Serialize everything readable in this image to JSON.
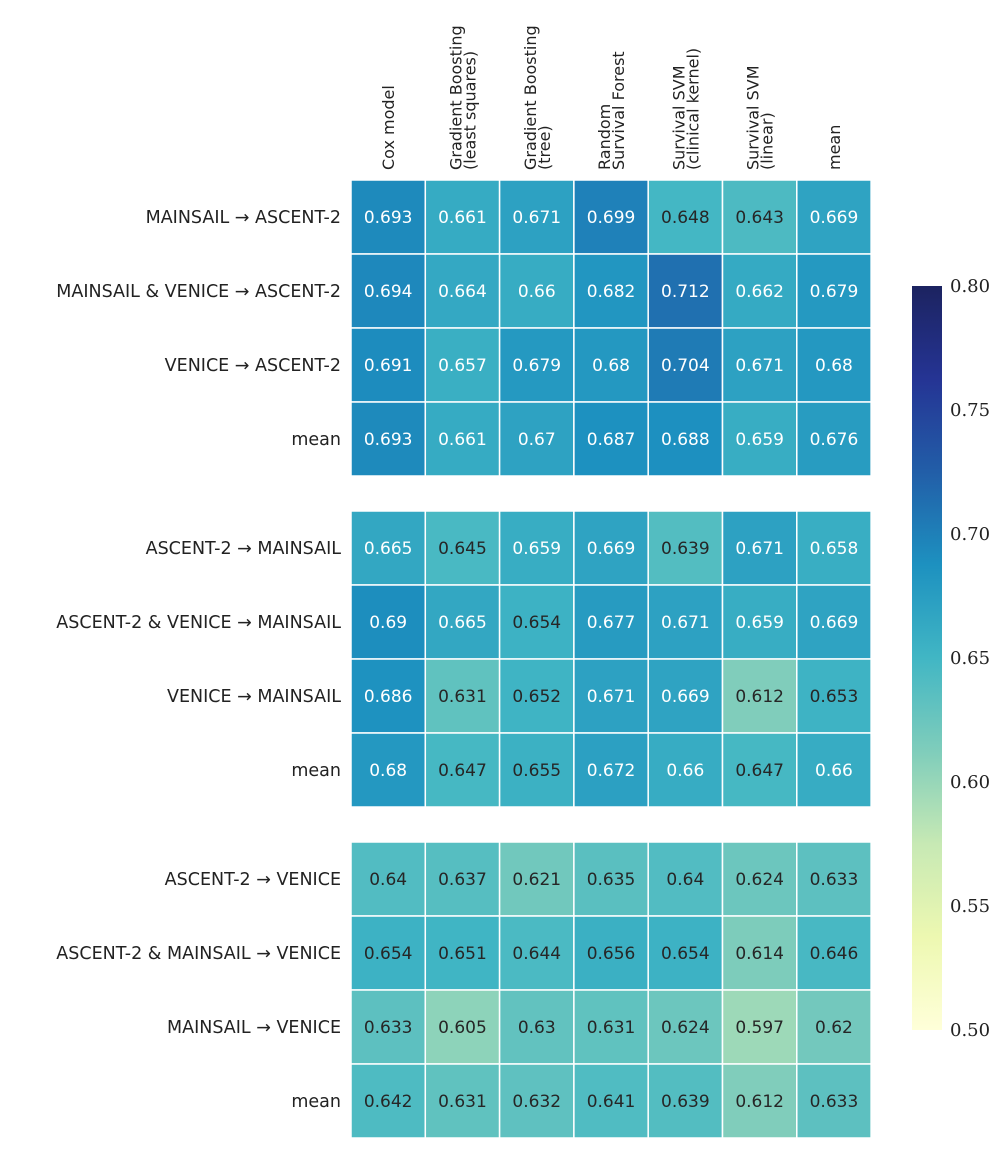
{
  "chart_data": {
    "type": "heatmap",
    "columns": [
      [
        "Cox model"
      ],
      [
        "Gradient Boosting",
        "(least squares)"
      ],
      [
        "Gradient Boosting",
        "(tree)"
      ],
      [
        "Random",
        "Survival Forest"
      ],
      [
        "Survival SVM",
        "(clinical kernel)"
      ],
      [
        "Survival SVM",
        "(linear)"
      ],
      [
        "mean"
      ]
    ],
    "blocks": [
      {
        "rows": [
          {
            "label": "MAINSAIL → ASCENT-2",
            "values": [
              0.693,
              0.661,
              0.671,
              0.699,
              0.648,
              0.643,
              0.669
            ]
          },
          {
            "label": "MAINSAIL & VENICE → ASCENT-2",
            "values": [
              0.694,
              0.664,
              0.66,
              0.682,
              0.712,
              0.662,
              0.679
            ]
          },
          {
            "label": "VENICE → ASCENT-2",
            "values": [
              0.691,
              0.657,
              0.679,
              0.68,
              0.704,
              0.671,
              0.68
            ]
          },
          {
            "label": "mean",
            "values": [
              0.693,
              0.661,
              0.67,
              0.687,
              0.688,
              0.659,
              0.676
            ]
          }
        ]
      },
      {
        "rows": [
          {
            "label": "ASCENT-2 → MAINSAIL",
            "values": [
              0.665,
              0.645,
              0.659,
              0.669,
              0.639,
              0.671,
              0.658
            ]
          },
          {
            "label": "ASCENT-2 & VENICE → MAINSAIL",
            "values": [
              0.69,
              0.665,
              0.654,
              0.677,
              0.671,
              0.659,
              0.669
            ]
          },
          {
            "label": "VENICE → MAINSAIL",
            "values": [
              0.686,
              0.631,
              0.652,
              0.671,
              0.669,
              0.612,
              0.653
            ]
          },
          {
            "label": "mean",
            "values": [
              0.68,
              0.647,
              0.655,
              0.672,
              0.66,
              0.647,
              0.66
            ]
          }
        ]
      },
      {
        "rows": [
          {
            "label": "ASCENT-2 → VENICE",
            "values": [
              0.64,
              0.637,
              0.621,
              0.635,
              0.64,
              0.624,
              0.633
            ]
          },
          {
            "label": "ASCENT-2 & MAINSAIL → VENICE",
            "values": [
              0.654,
              0.651,
              0.644,
              0.656,
              0.654,
              0.614,
              0.646
            ]
          },
          {
            "label": "MAINSAIL → VENICE",
            "values": [
              0.633,
              0.605,
              0.63,
              0.631,
              0.624,
              0.597,
              0.62
            ]
          },
          {
            "label": "mean",
            "values": [
              0.642,
              0.631,
              0.632,
              0.641,
              0.639,
              0.612,
              0.633
            ]
          }
        ]
      }
    ],
    "colormap": "YlGnBu",
    "vmin": 0.5,
    "vmax": 0.8,
    "colorbar_ticks": [
      "0.50",
      "0.55",
      "0.60",
      "0.65",
      "0.70",
      "0.75",
      "0.80"
    ],
    "colorbar_position": "right",
    "colormap_stops": [
      "#ffffd9",
      "#edf8b1",
      "#c7e9b4",
      "#7fcdbb",
      "#41b6c4",
      "#1d91c0",
      "#225ea8",
      "#253494",
      "#1c2360"
    ],
    "text_colors": {
      "light": "#ffffff",
      "dark": "#262626"
    }
  }
}
